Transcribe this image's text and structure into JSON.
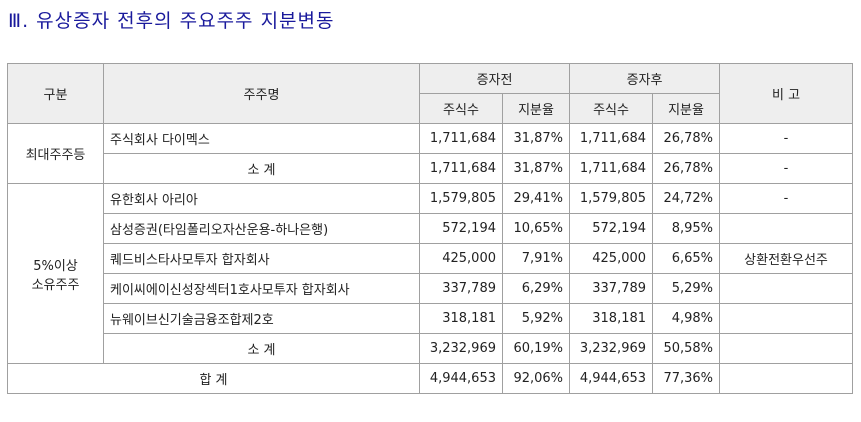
{
  "header": {
    "title": "Ⅲ. 유상증자 전후의 주요주주 지분변동"
  },
  "table": {
    "head": {
      "group": "구분",
      "name": "주주명",
      "before": "증자전",
      "after": "증자후",
      "note": "비 고",
      "sub": [
        "주식수",
        "지분율",
        "주식수",
        "지분율"
      ]
    },
    "groups": [
      {
        "label": "최대주주등",
        "rows": [
          {
            "name": "주식회사 다이멕스",
            "cells": [
              "1,711,684",
              "31,87%",
              "1,711,684",
              "26,78%"
            ],
            "note": "-"
          },
          {
            "name": "소 계",
            "subtotal": true,
            "cells": [
              "1,711,684",
              "31,87%",
              "1,711,684",
              "26,78%"
            ],
            "note": "-"
          }
        ]
      },
      {
        "label": "5%이상\n소유주주",
        "rows": [
          {
            "name": "유한회사 아리아",
            "cells": [
              "1,579,805",
              "29,41%",
              "1,579,805",
              "24,72%"
            ],
            "note": "-"
          },
          {
            "name": "삼성증권(타임폴리오자산운용-하나은행)",
            "cells": [
              "572,194",
              "10,65%",
              "572,194",
              "8,95%"
            ],
            "note": null
          },
          {
            "name": "퀘드비스타사모투자 합자회사",
            "cells": [
              "425,000",
              "7,91%",
              "425,000",
              "6,65%"
            ],
            "note": "상환전환우선주"
          },
          {
            "name": "케이씨에이신성장섹터1호사모투자 합자회사",
            "cells": [
              "337,789",
              "6,29%",
              "337,789",
              "5,29%"
            ],
            "note": null
          },
          {
            "name": "뉴웨이브신기술금융조합제2호",
            "cells": [
              "318,181",
              "5,92%",
              "318,181",
              "4,98%"
            ],
            "note": null
          },
          {
            "name": "소 계",
            "subtotal": true,
            "cells": [
              "3,232,969",
              "60,19%",
              "3,232,969",
              "50,58%"
            ],
            "note": null
          }
        ]
      }
    ],
    "total": {
      "label": "합 계",
      "cells": [
        "4,944,653",
        "92,06%",
        "4,944,653",
        "77,36%"
      ],
      "note": null
    }
  }
}
